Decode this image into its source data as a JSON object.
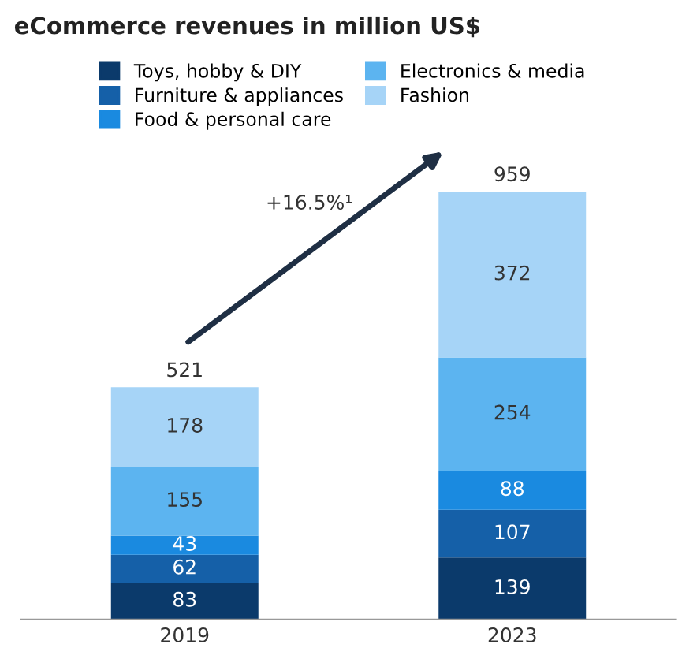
{
  "chart_data": {
    "type": "bar",
    "title": "eCommerce revenues in million US$",
    "categories": [
      "2019",
      "2023"
    ],
    "stacked": true,
    "series": [
      {
        "name": "Toys, hobby & DIY",
        "color": "#0b3a6b",
        "values": [
          83,
          139
        ]
      },
      {
        "name": "Furniture & appliances",
        "color": "#1560a8",
        "values": [
          62,
          107
        ]
      },
      {
        "name": "Food & personal care",
        "color": "#1a8ae0",
        "values": [
          43,
          88
        ]
      },
      {
        "name": "Electronics & media",
        "color": "#5cb4f0",
        "values": [
          155,
          254
        ]
      },
      {
        "name": "Fashion",
        "color": "#a6d4f7",
        "values": [
          178,
          372
        ]
      }
    ],
    "data_labels": true,
    "totals": [
      "521",
      "959"
    ],
    "annotations": [
      "+16.5%¹"
    ],
    "legend": "top left",
    "grid": false
  }
}
